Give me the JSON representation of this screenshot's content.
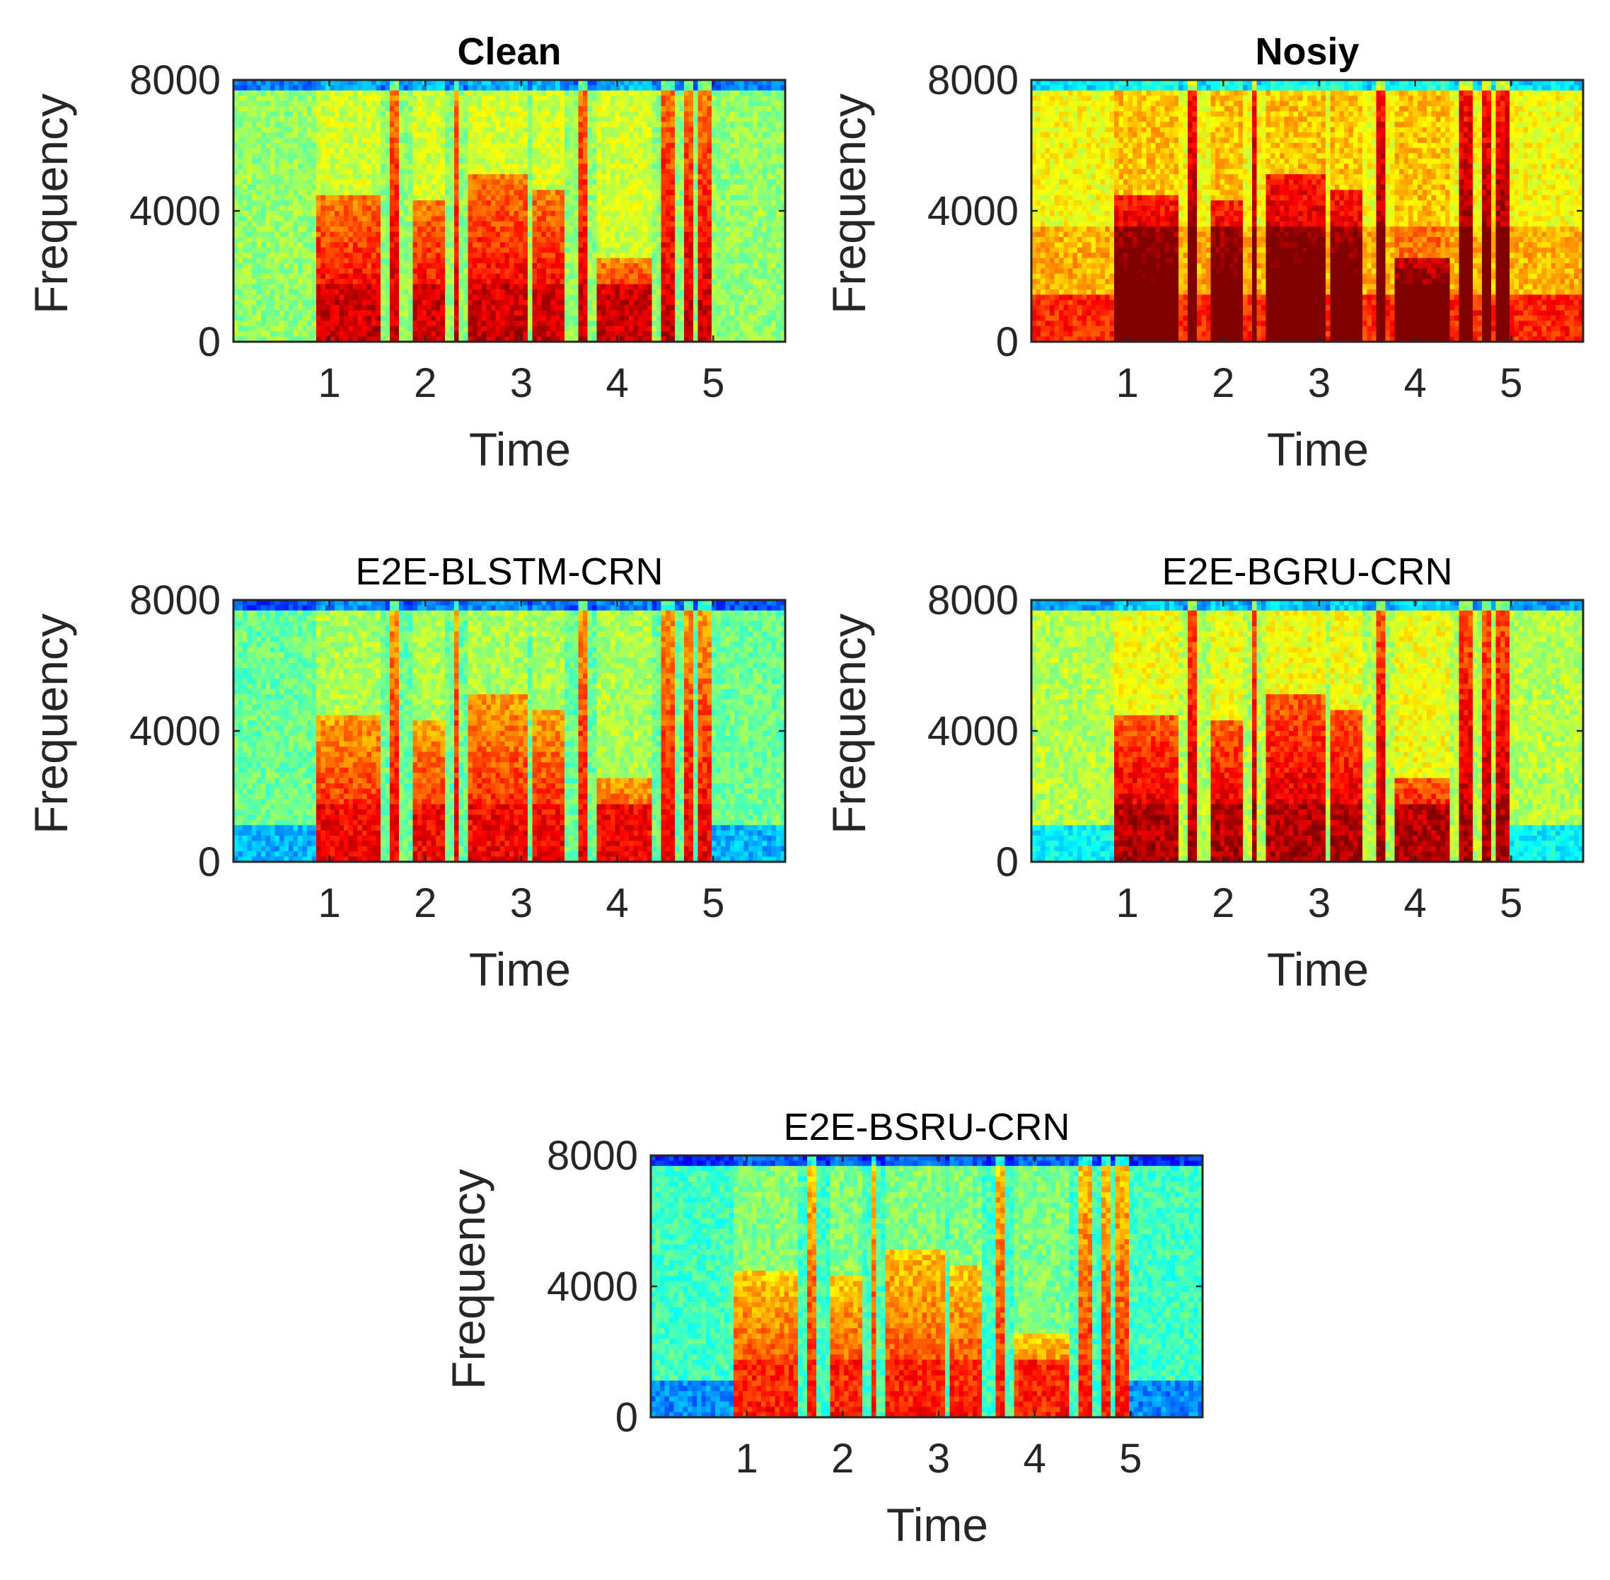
{
  "chart_data": [
    {
      "type": "heatmap",
      "title": "Clean",
      "title_weight": "bold",
      "xlabel": "Time",
      "ylabel": "Frequency",
      "xticks": [
        1,
        2,
        3,
        4,
        5
      ],
      "yticks": [
        0,
        4000,
        8000
      ],
      "xlim": [
        0,
        5.75
      ],
      "ylim": [
        0,
        8000
      ],
      "colormap": "jet",
      "noise_level": 0.52,
      "profile": "clean"
    },
    {
      "type": "heatmap",
      "title": "Nosiy",
      "title_weight": "bold",
      "xlabel": "Time",
      "ylabel": "Frequency",
      "xticks": [
        1,
        2,
        3,
        4,
        5
      ],
      "yticks": [
        0,
        4000,
        8000
      ],
      "xlim": [
        0,
        5.75
      ],
      "ylim": [
        0,
        8000
      ],
      "colormap": "jet",
      "noise_level": 0.62,
      "profile": "noisy"
    },
    {
      "type": "heatmap",
      "title": "E2E-BLSTM-CRN",
      "title_weight": "normal",
      "xlabel": "Time",
      "ylabel": "Frequency",
      "xticks": [
        1,
        2,
        3,
        4,
        5
      ],
      "yticks": [
        0,
        4000,
        8000
      ],
      "xlim": [
        0,
        5.75
      ],
      "ylim": [
        0,
        8000
      ],
      "colormap": "jet",
      "noise_level": 0.48,
      "profile": "enhanced"
    },
    {
      "type": "heatmap",
      "title": "E2E-BGRU-CRN",
      "title_weight": "normal",
      "xlabel": "Time",
      "ylabel": "Frequency",
      "xticks": [
        1,
        2,
        3,
        4,
        5
      ],
      "yticks": [
        0,
        4000,
        8000
      ],
      "xlim": [
        0,
        5.75
      ],
      "ylim": [
        0,
        8000
      ],
      "colormap": "jet",
      "noise_level": 0.55,
      "profile": "enhanced"
    },
    {
      "type": "heatmap",
      "title": "E2E-BSRU-CRN",
      "title_weight": "normal",
      "xlabel": "Time",
      "ylabel": "Frequency",
      "xticks": [
        1,
        2,
        3,
        4,
        5
      ],
      "yticks": [
        0,
        4000,
        8000
      ],
      "xlim": [
        0,
        5.75
      ],
      "ylim": [
        0,
        8000
      ],
      "colormap": "jet",
      "noise_level": 0.44,
      "profile": "enhanced"
    }
  ]
}
